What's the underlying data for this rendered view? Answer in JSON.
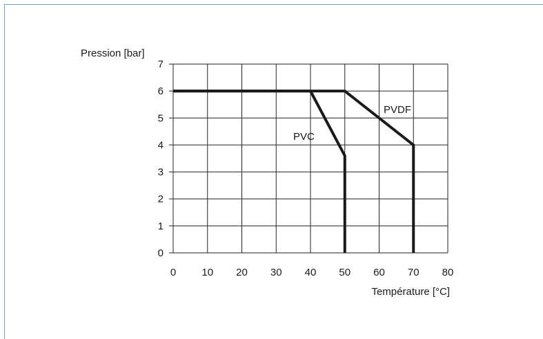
{
  "chart_data": {
    "type": "line",
    "xlabel": "Température [°C]",
    "ylabel": "Pression [bar]",
    "xlim": [
      0,
      80
    ],
    "ylim": [
      0,
      7
    ],
    "x_ticks": [
      0,
      10,
      20,
      30,
      40,
      50,
      60,
      70,
      80
    ],
    "y_ticks": [
      0,
      1,
      2,
      3,
      4,
      5,
      6,
      7
    ],
    "grid": true,
    "series": [
      {
        "name": "PVC",
        "x": [
          0,
          40,
          50,
          50
        ],
        "y": [
          6,
          6,
          3.6,
          0
        ]
      },
      {
        "name": "PVDF",
        "x": [
          0,
          50,
          70,
          70
        ],
        "y": [
          6,
          6,
          4,
          0
        ]
      }
    ]
  },
  "colors": {
    "line": "#1a1a1a",
    "grid": "#222222",
    "frame": "#6fa8d6"
  }
}
